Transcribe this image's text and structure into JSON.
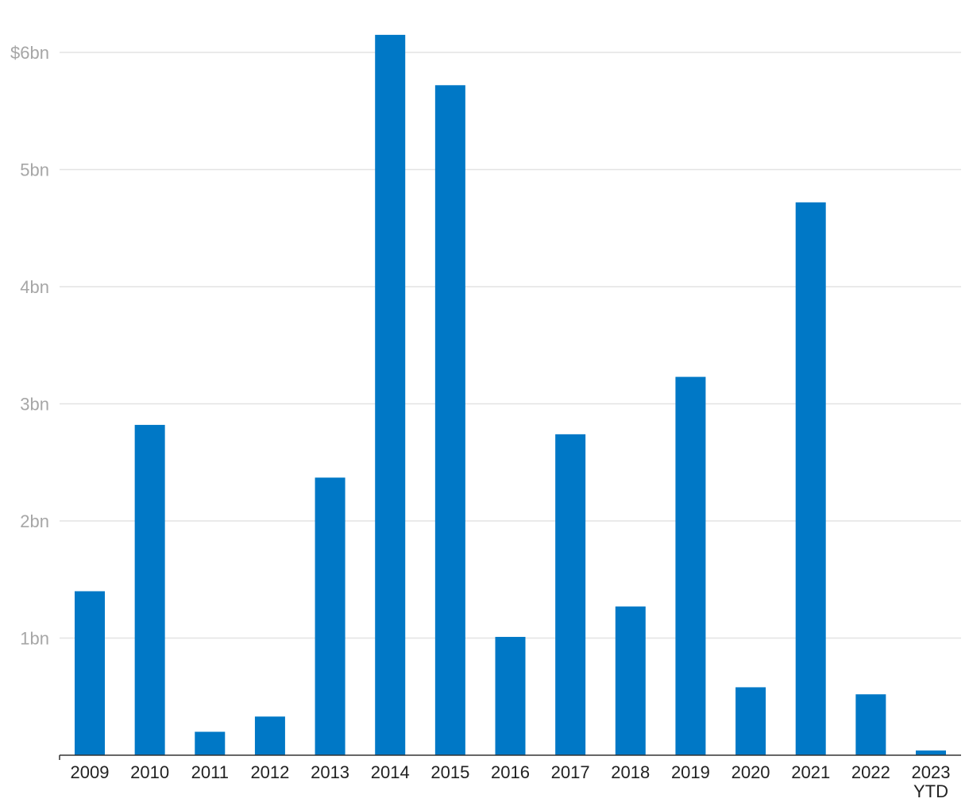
{
  "chart_data": {
    "type": "bar",
    "categories": [
      "2009",
      "2010",
      "2011",
      "2012",
      "2013",
      "2014",
      "2015",
      "2016",
      "2017",
      "2018",
      "2019",
      "2020",
      "2021",
      "2022",
      "2023 YTD"
    ],
    "category_lines": [
      [
        "2009"
      ],
      [
        "2010"
      ],
      [
        "2011"
      ],
      [
        "2012"
      ],
      [
        "2013"
      ],
      [
        "2014"
      ],
      [
        "2015"
      ],
      [
        "2016"
      ],
      [
        "2017"
      ],
      [
        "2018"
      ],
      [
        "2019"
      ],
      [
        "2020"
      ],
      [
        "2021"
      ],
      [
        "2022"
      ],
      [
        "2023",
        "YTD"
      ]
    ],
    "values": [
      1.4,
      2.82,
      0.2,
      0.33,
      2.37,
      6.15,
      5.72,
      1.01,
      2.74,
      1.27,
      3.23,
      0.58,
      4.72,
      0.52,
      0.04
    ],
    "unit": "bn USD",
    "title": "",
    "xlabel": "",
    "ylabel": "",
    "ylim": [
      0,
      6
    ],
    "yticks": [
      1,
      2,
      3,
      4,
      5,
      6
    ],
    "ytick_labels": [
      "1bn",
      "2bn",
      "3bn",
      "4bn",
      "5bn",
      "$6bn"
    ],
    "grid": true,
    "legend": "none",
    "colors": {
      "bar": "#0078c6",
      "grid": "#e3e3e3",
      "axis": "#333333",
      "ytick_text": "#a6a6a6",
      "xtick_text": "#222222"
    }
  }
}
